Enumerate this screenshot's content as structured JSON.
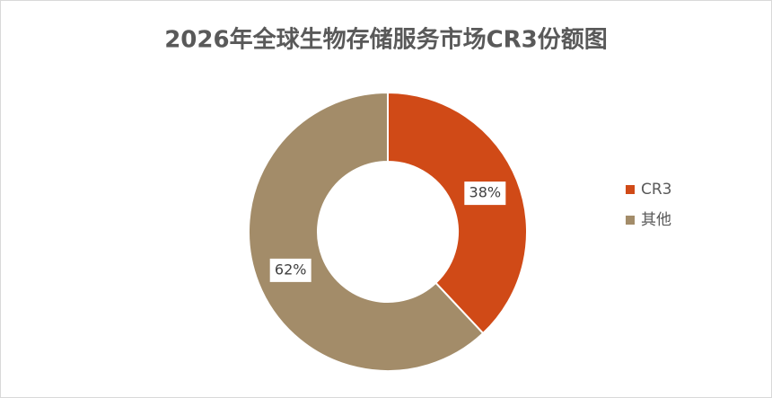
{
  "chart_data": {
    "type": "pie",
    "donut": true,
    "title": "2026年全球生物存储服务市场CR3份额图",
    "categories": [
      "CR3",
      "其他"
    ],
    "values": [
      38,
      62
    ],
    "value_labels": [
      "38%",
      "62%"
    ],
    "colors": [
      "#d04a17",
      "#a38c69"
    ],
    "legend": "right"
  }
}
